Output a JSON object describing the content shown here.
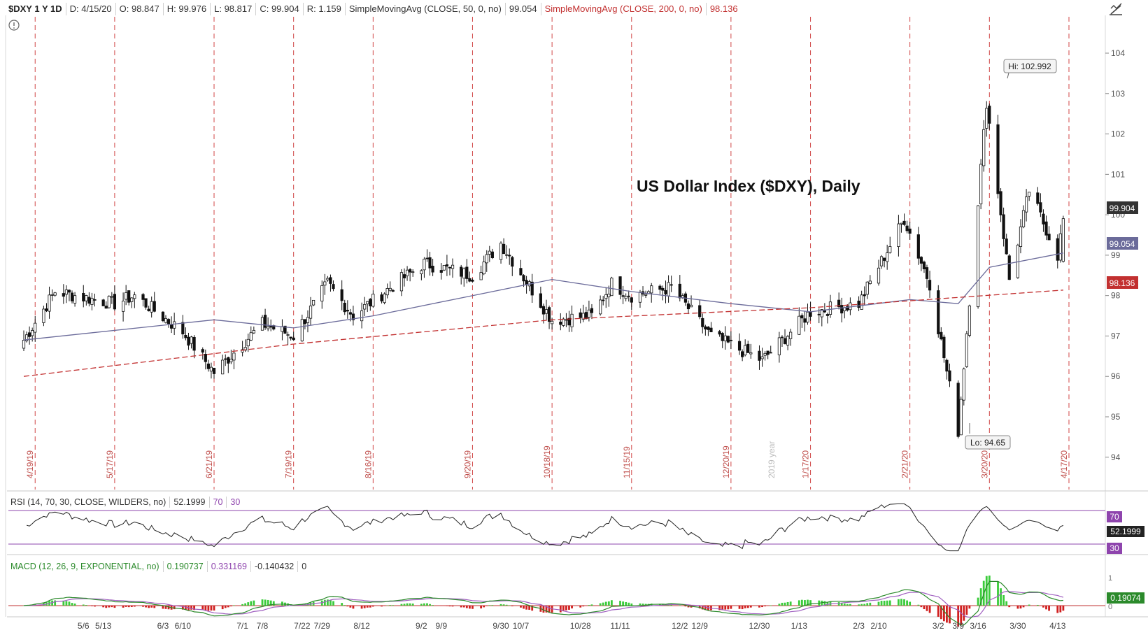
{
  "header": {
    "symbol": "$DXY 1 Y 1D",
    "date": "D: 4/15/20",
    "open": "O: 98.847",
    "high": "H: 99.976",
    "low": "L: 98.817",
    "close": "C: 99.904",
    "range": "R: 1.159",
    "sma50_label": "SimpleMovingAvg (CLOSE, 50, 0, no)",
    "sma50_value": "99.054",
    "sma200_label": "SimpleMovingAvg (CLOSE, 200, 0, no)",
    "sma200_value": "98.136"
  },
  "title": "US Dollar Index ($DXY), Daily",
  "annotations": {
    "hi": "Hi: 102.992",
    "lo": "Lo: 94.65",
    "year": "2019 year"
  },
  "price_tags": {
    "last": "99.904",
    "sma50": "99.054",
    "sma200": "98.136"
  },
  "rsi": {
    "label": "RSI (14, 70, 30, CLOSE, WILDERS, no)",
    "value": "52.1999",
    "ob": "70",
    "os": "30"
  },
  "macd": {
    "label": "MACD (12, 26, 9, EXPONENTIAL, no)",
    "value": "0.190737",
    "avg": "0.331169",
    "diff": "-0.140432",
    "zero": "0",
    "tag": "0.19074"
  },
  "colors": {
    "up": "#ffffff",
    "down": "#111111",
    "sma50": "#6b6b9a",
    "sma200": "#c23030",
    "vline": "#d04545",
    "rsi_band": "#8e44ad",
    "macd_line": "#2b8a2b",
    "macd_avg": "#a060c0",
    "hist_up": "#3bcc3b",
    "hist_down": "#d02020"
  },
  "icons": {
    "draw": "pencil-trend-icon",
    "info": "info-icon"
  },
  "chart_data": {
    "type": "candlestick",
    "title": "US Dollar Index ($DXY), Daily",
    "y_ticks": [
      94,
      95,
      96,
      97,
      98,
      99,
      100,
      101,
      102,
      103,
      104
    ],
    "ylim": [
      93.2,
      104.9
    ],
    "expiry_labels": [
      "4/19/19",
      "5/17/19",
      "6/21/19",
      "7/19/19",
      "8/16/19",
      "9/20/19",
      "10/18/19",
      "11/15/19",
      "12/20/19",
      "1/17/20",
      "2/21/20",
      "3/20/20",
      "4/17/20"
    ],
    "x_tick_labels": [
      "5/6",
      "5/13",
      "6/3",
      "6/10",
      "7/1",
      "7/8",
      "7/22",
      "7/29",
      "8/12",
      "9/2",
      "9/9",
      "9/30",
      "10/7",
      "10/28",
      "11/11",
      "12/2",
      "12/9",
      "12/30",
      "1/13",
      "2/3",
      "2/10",
      "3/2",
      "3/9",
      "3/16",
      "3/30",
      "4/13"
    ],
    "series": [
      {
        "name": "SimpleMovingAvg (CLOSE, 50, 0, no)",
        "points": [
          [
            "4/15/19",
            96.9
          ],
          [
            "6/21/19",
            97.4
          ],
          [
            "7/19/19",
            97.2
          ],
          [
            "8/16/19",
            97.5
          ],
          [
            "9/20/19",
            98.0
          ],
          [
            "10/18/19",
            98.4
          ],
          [
            "11/15/19",
            98.1
          ],
          [
            "12/20/19",
            97.8
          ],
          [
            "1/17/20",
            97.6
          ],
          [
            "2/21/20",
            97.9
          ],
          [
            "3/9/20",
            97.8
          ],
          [
            "3/20/20",
            98.7
          ],
          [
            "4/15/20",
            99.054
          ]
        ]
      },
      {
        "name": "SimpleMovingAvg (CLOSE, 200, 0, no)",
        "points": [
          [
            "4/15/19",
            96.0
          ],
          [
            "7/19/19",
            96.8
          ],
          [
            "10/18/19",
            97.4
          ],
          [
            "1/17/20",
            97.7
          ],
          [
            "4/15/20",
            98.136
          ]
        ]
      }
    ],
    "close_path": [
      [
        "4/15/19",
        96.9
      ],
      [
        "4/26/19",
        98.1
      ],
      [
        "5/17/19",
        97.8
      ],
      [
        "5/24/19",
        98.0
      ],
      [
        "6/10/19",
        97.1
      ],
      [
        "6/21/19",
        96.1
      ],
      [
        "7/8/19",
        97.3
      ],
      [
        "7/19/19",
        97.0
      ],
      [
        "7/31/19",
        98.3
      ],
      [
        "8/9/19",
        97.5
      ],
      [
        "8/22/19",
        98.2
      ],
      [
        "9/3/19",
        98.8
      ],
      [
        "9/20/19",
        98.5
      ],
      [
        "9/30/19",
        99.3
      ],
      [
        "10/18/19",
        97.4
      ],
      [
        "11/1/19",
        97.5
      ],
      [
        "11/8/19",
        98.3
      ],
      [
        "11/15/19",
        98.0
      ],
      [
        "11/29/19",
        98.2
      ],
      [
        "12/13/19",
        97.0
      ],
      [
        "12/31/19",
        96.4
      ],
      [
        "1/17/20",
        97.6
      ],
      [
        "2/3/20",
        97.8
      ],
      [
        "2/19/20",
        99.9
      ],
      [
        "2/28/20",
        98.3
      ],
      [
        "3/9/20",
        94.65
      ],
      [
        "3/19/20",
        102.8
      ],
      [
        "3/27/20",
        98.4
      ],
      [
        "4/3/20",
        100.6
      ],
      [
        "4/13/20",
        99.0
      ],
      [
        "4/15/20",
        99.904
      ]
    ],
    "last": {
      "date": "4/15/20",
      "open": 98.847,
      "high": 99.976,
      "low": 98.817,
      "close": 99.904
    },
    "high": {
      "date": "3/20/20",
      "value": 102.992
    },
    "low": {
      "date": "3/9/20",
      "value": 94.65
    },
    "rsi": {
      "levels": [
        70,
        30
      ],
      "last": 52.1999
    },
    "macd": {
      "value": 0.190737,
      "avg": 0.331169,
      "diff": -0.140432,
      "y_ticks": [
        0,
        1
      ]
    }
  }
}
